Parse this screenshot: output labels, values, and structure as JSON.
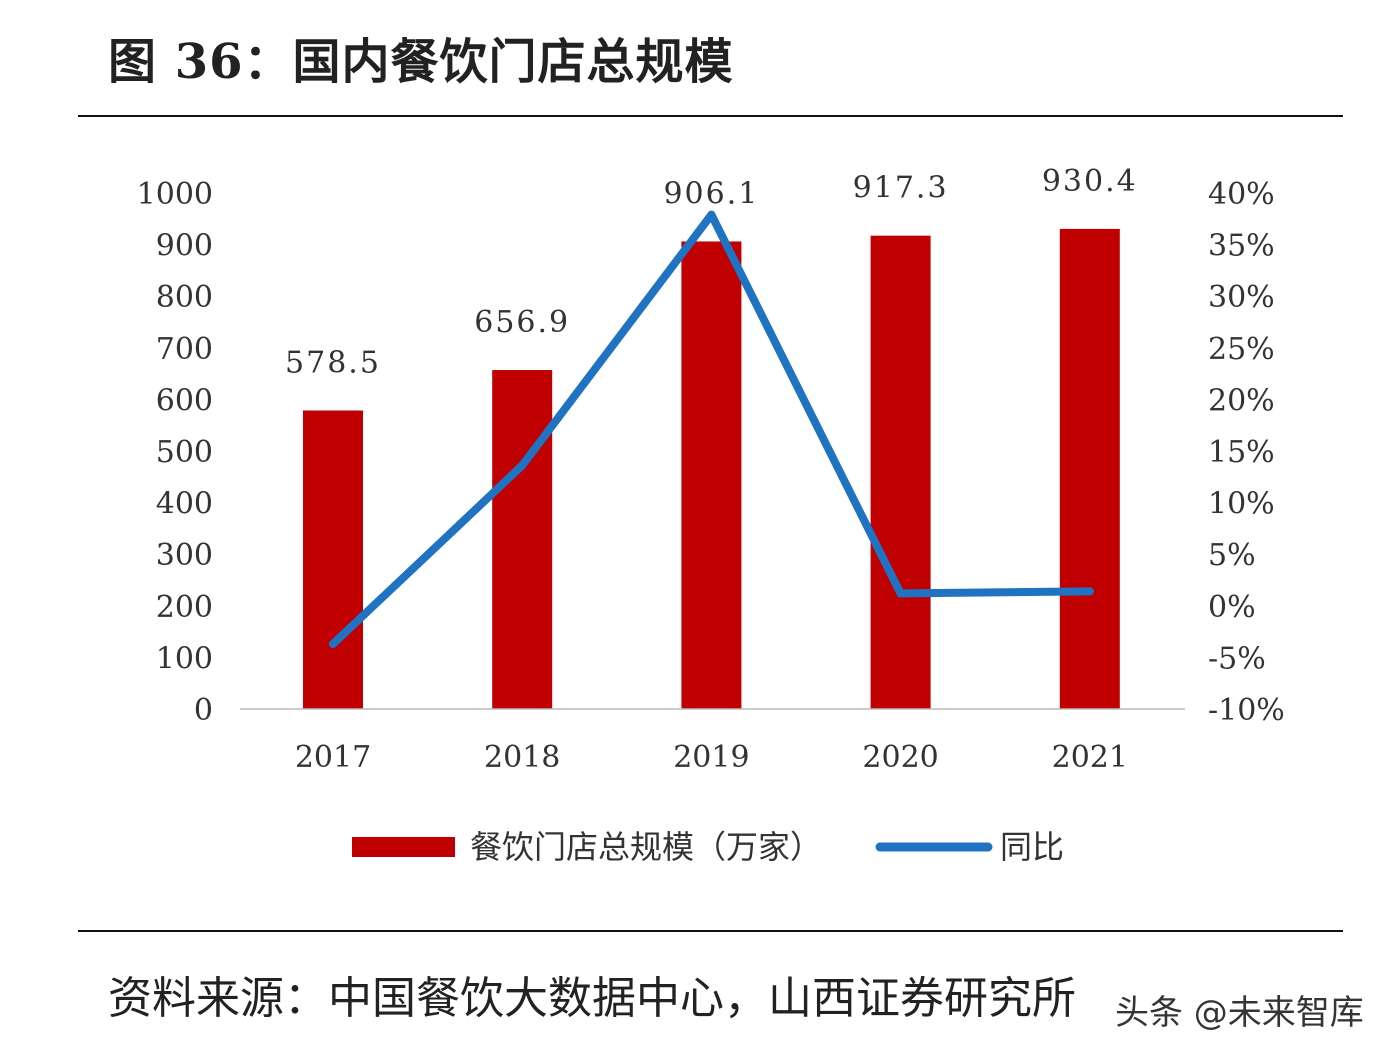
{
  "title": "图 36：国内餐饮门店总规模",
  "source": "资料来源：中国餐饮大数据中心，山西证券研究所",
  "watermark": "头条 @未来智库",
  "chart_data": {
    "type": "bar+line",
    "title": "图 36：国内餐饮门店总规模",
    "categories": [
      "2017",
      "2018",
      "2019",
      "2020",
      "2021"
    ],
    "series": [
      {
        "name": "餐饮门店总规模（万家）",
        "type": "bar",
        "axis": "left",
        "color": "#C00000",
        "values": [
          578.5,
          656.9,
          906.1,
          917.3,
          930.4
        ],
        "data_labels": [
          "578.5",
          "656.9",
          "906.1",
          "917.3",
          "930.4"
        ]
      },
      {
        "name": "同比",
        "type": "line",
        "axis": "right",
        "color": "#1F73C2",
        "values": [
          -3.7,
          13.6,
          37.9,
          1.2,
          1.4
        ]
      }
    ],
    "y_left": {
      "range": [
        0,
        1000
      ],
      "ticks": [
        "0",
        "100",
        "200",
        "300",
        "400",
        "500",
        "600",
        "700",
        "800",
        "900",
        "1000"
      ]
    },
    "y_right": {
      "range": [
        -10,
        40
      ],
      "unit": "%",
      "ticks": [
        "-10%",
        "-5%",
        "0%",
        "5%",
        "10%",
        "15%",
        "20%",
        "25%",
        "30%",
        "35%",
        "40%"
      ]
    },
    "grid": false,
    "legend_position": "bottom"
  }
}
